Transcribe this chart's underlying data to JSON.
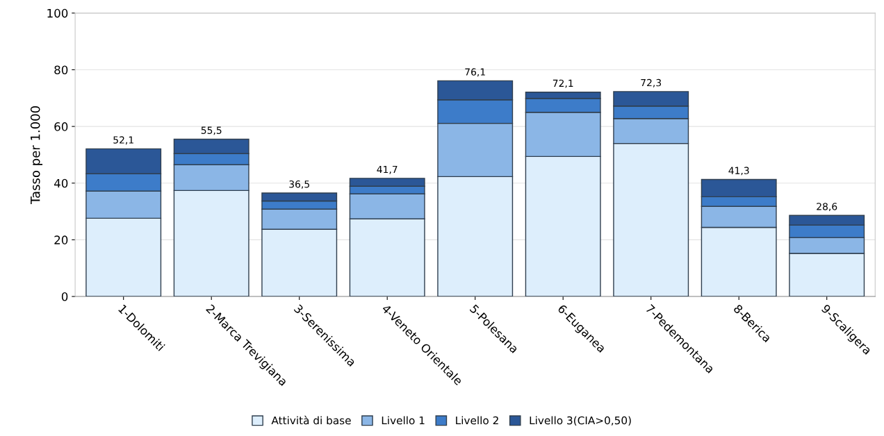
{
  "chart_data": {
    "type": "bar",
    "stacked": true,
    "ylabel": "Tasso per 1.000",
    "categories": [
      "1-Dolomiti",
      "2-Marca Trevigiana",
      "3-Serenissima",
      "4-Veneto Orientale",
      "5-Polesana",
      "6-Euganea",
      "7-Pedemontana",
      "8-Berica",
      "9-Scaligera"
    ],
    "series": [
      {
        "name": "Attività di base",
        "color": "#ddeefc",
        "values": [
          27.6,
          37.4,
          23.7,
          27.4,
          42.3,
          49.4,
          54.0,
          24.4,
          15.2
        ]
      },
      {
        "name": "Livello 1",
        "color": "#8bb6e6",
        "values": [
          9.6,
          9.1,
          7.1,
          8.8,
          18.8,
          15.6,
          8.8,
          7.4,
          5.6
        ]
      },
      {
        "name": "Livello 2",
        "color": "#3d7cc9",
        "values": [
          6.1,
          3.9,
          2.9,
          2.7,
          8.3,
          4.9,
          4.4,
          3.4,
          4.4
        ]
      },
      {
        "name": "Livello 3(CIA>0,50)",
        "color": "#2b5797",
        "values": [
          8.8,
          5.1,
          2.8,
          2.8,
          6.7,
          2.2,
          5.1,
          6.1,
          3.4
        ]
      }
    ],
    "totals": [
      "52,1",
      "55,5",
      "36,5",
      "41,7",
      "76,1",
      "72,1",
      "72,3",
      "41,3",
      "28,6"
    ],
    "ylim": [
      0,
      100
    ],
    "yticks": [
      0,
      20,
      40,
      60,
      80,
      100
    ],
    "grid": "y",
    "legend": "bottom"
  }
}
